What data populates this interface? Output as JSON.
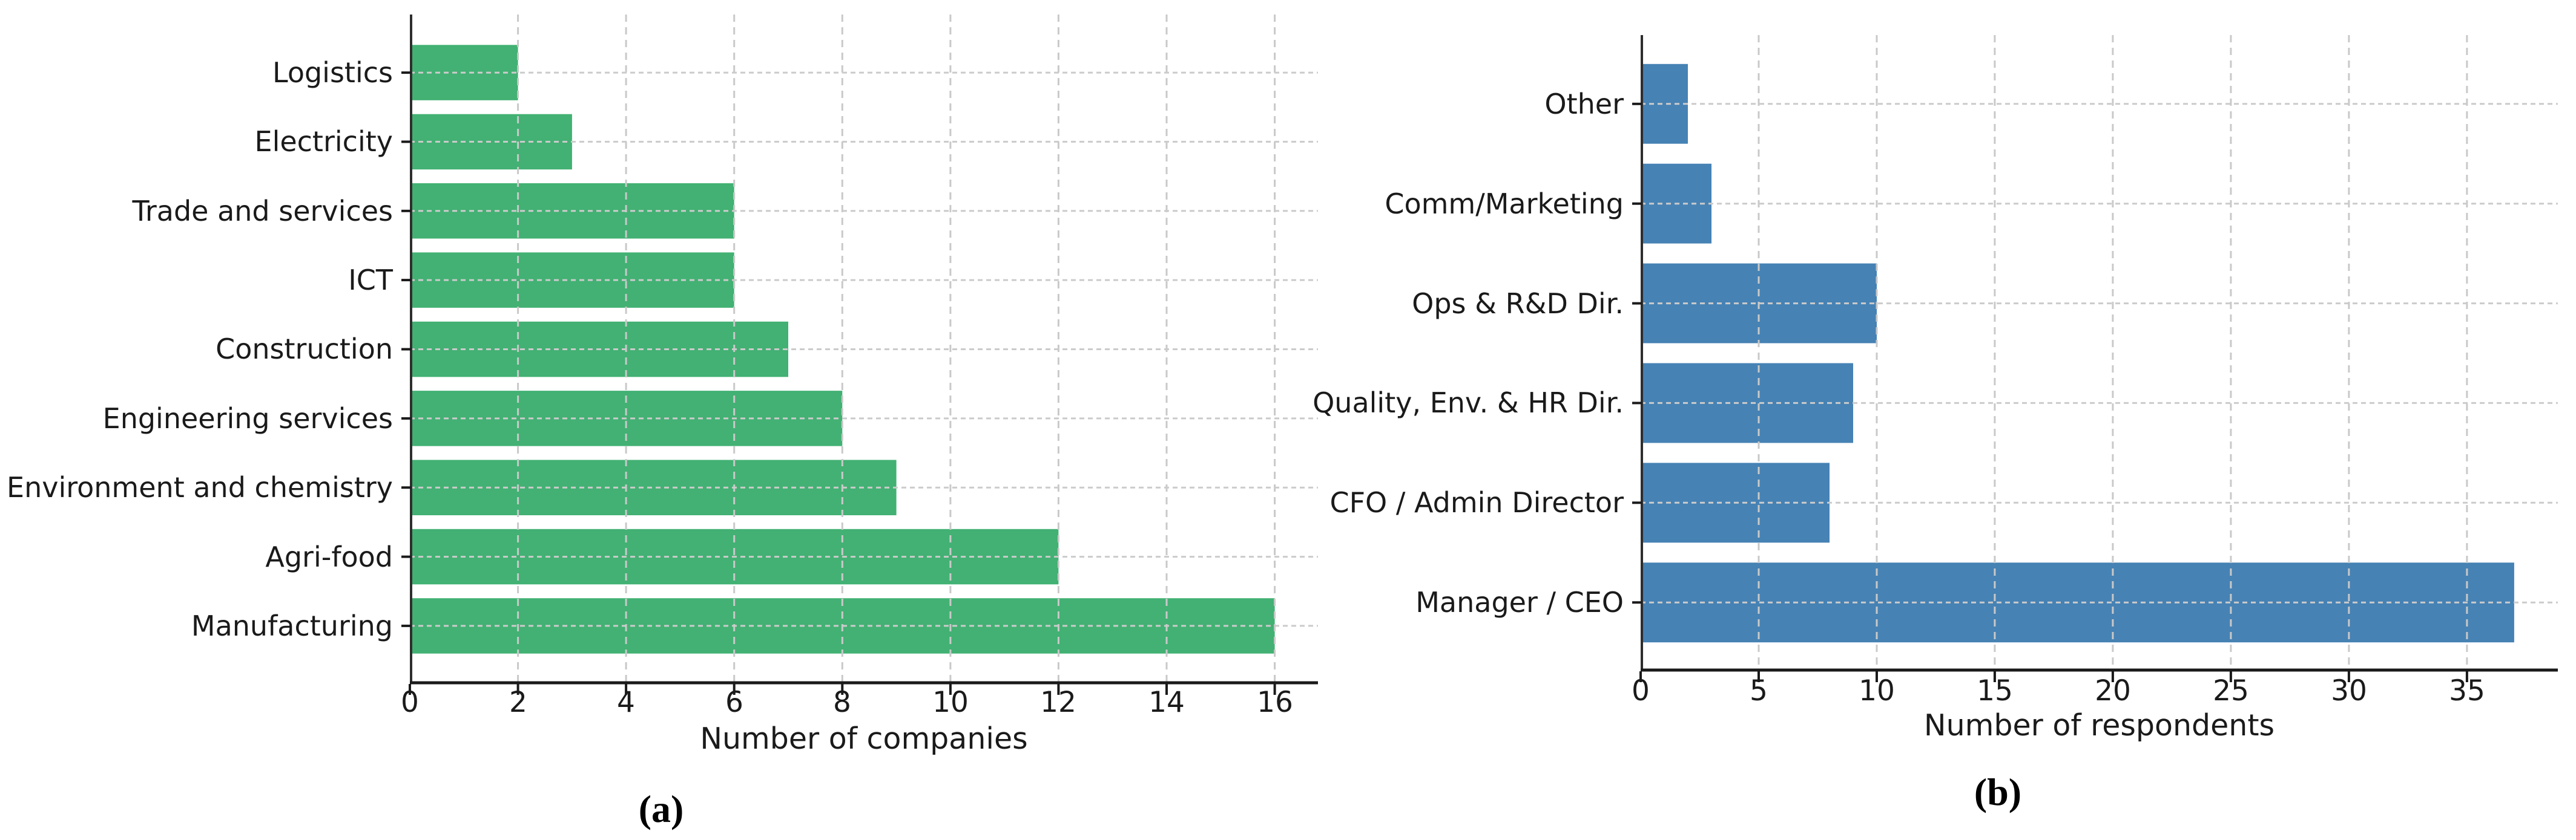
{
  "figure": {
    "background": "#ffffff",
    "description": "Two-panel horizontal bar chart figure",
    "panel_captions": [
      "(a)",
      "(b)"
    ]
  },
  "chart_data": [
    {
      "id": "companies-by-sector",
      "type": "bar",
      "orientation": "horizontal",
      "title": "",
      "xlabel": "Number of companies",
      "ylabel": "",
      "caption": "(a)",
      "categories_top_to_bottom": [
        "Logistics",
        "Electricity",
        "Trade and services",
        "ICT",
        "Construction",
        "Engineering services",
        "Environment and chemistry",
        "Agri-food",
        "Manufacturing"
      ],
      "values": [
        2,
        3,
        6,
        6,
        7,
        8,
        9,
        12,
        16
      ],
      "xticks": [
        0,
        2,
        4,
        6,
        8,
        10,
        12,
        14,
        16
      ],
      "xlim": [
        0,
        16.8
      ],
      "bar_color": "#42b173",
      "grid": true,
      "grid_color": "#c9c9c9",
      "spine_color": "#1a1a1a",
      "legend_position": "none"
    },
    {
      "id": "respondents-by-role",
      "type": "bar",
      "orientation": "horizontal",
      "title": "",
      "xlabel": "Number of respondents",
      "ylabel": "",
      "caption": "(b)",
      "categories_top_to_bottom": [
        "Other",
        "Comm/Marketing",
        "Ops & R&D Dir.",
        "Quality, Env. & HR Dir.",
        "CFO / Admin Director",
        "Manager / CEO"
      ],
      "values": [
        2,
        3,
        10,
        9,
        8,
        37
      ],
      "xticks": [
        0,
        5,
        10,
        15,
        20,
        25,
        30,
        35
      ],
      "xlim": [
        0,
        38.85
      ],
      "bar_color": "#4682b4",
      "grid": true,
      "grid_color": "#c9c9c9",
      "spine_color": "#1a1a1a",
      "legend_position": "none"
    }
  ]
}
